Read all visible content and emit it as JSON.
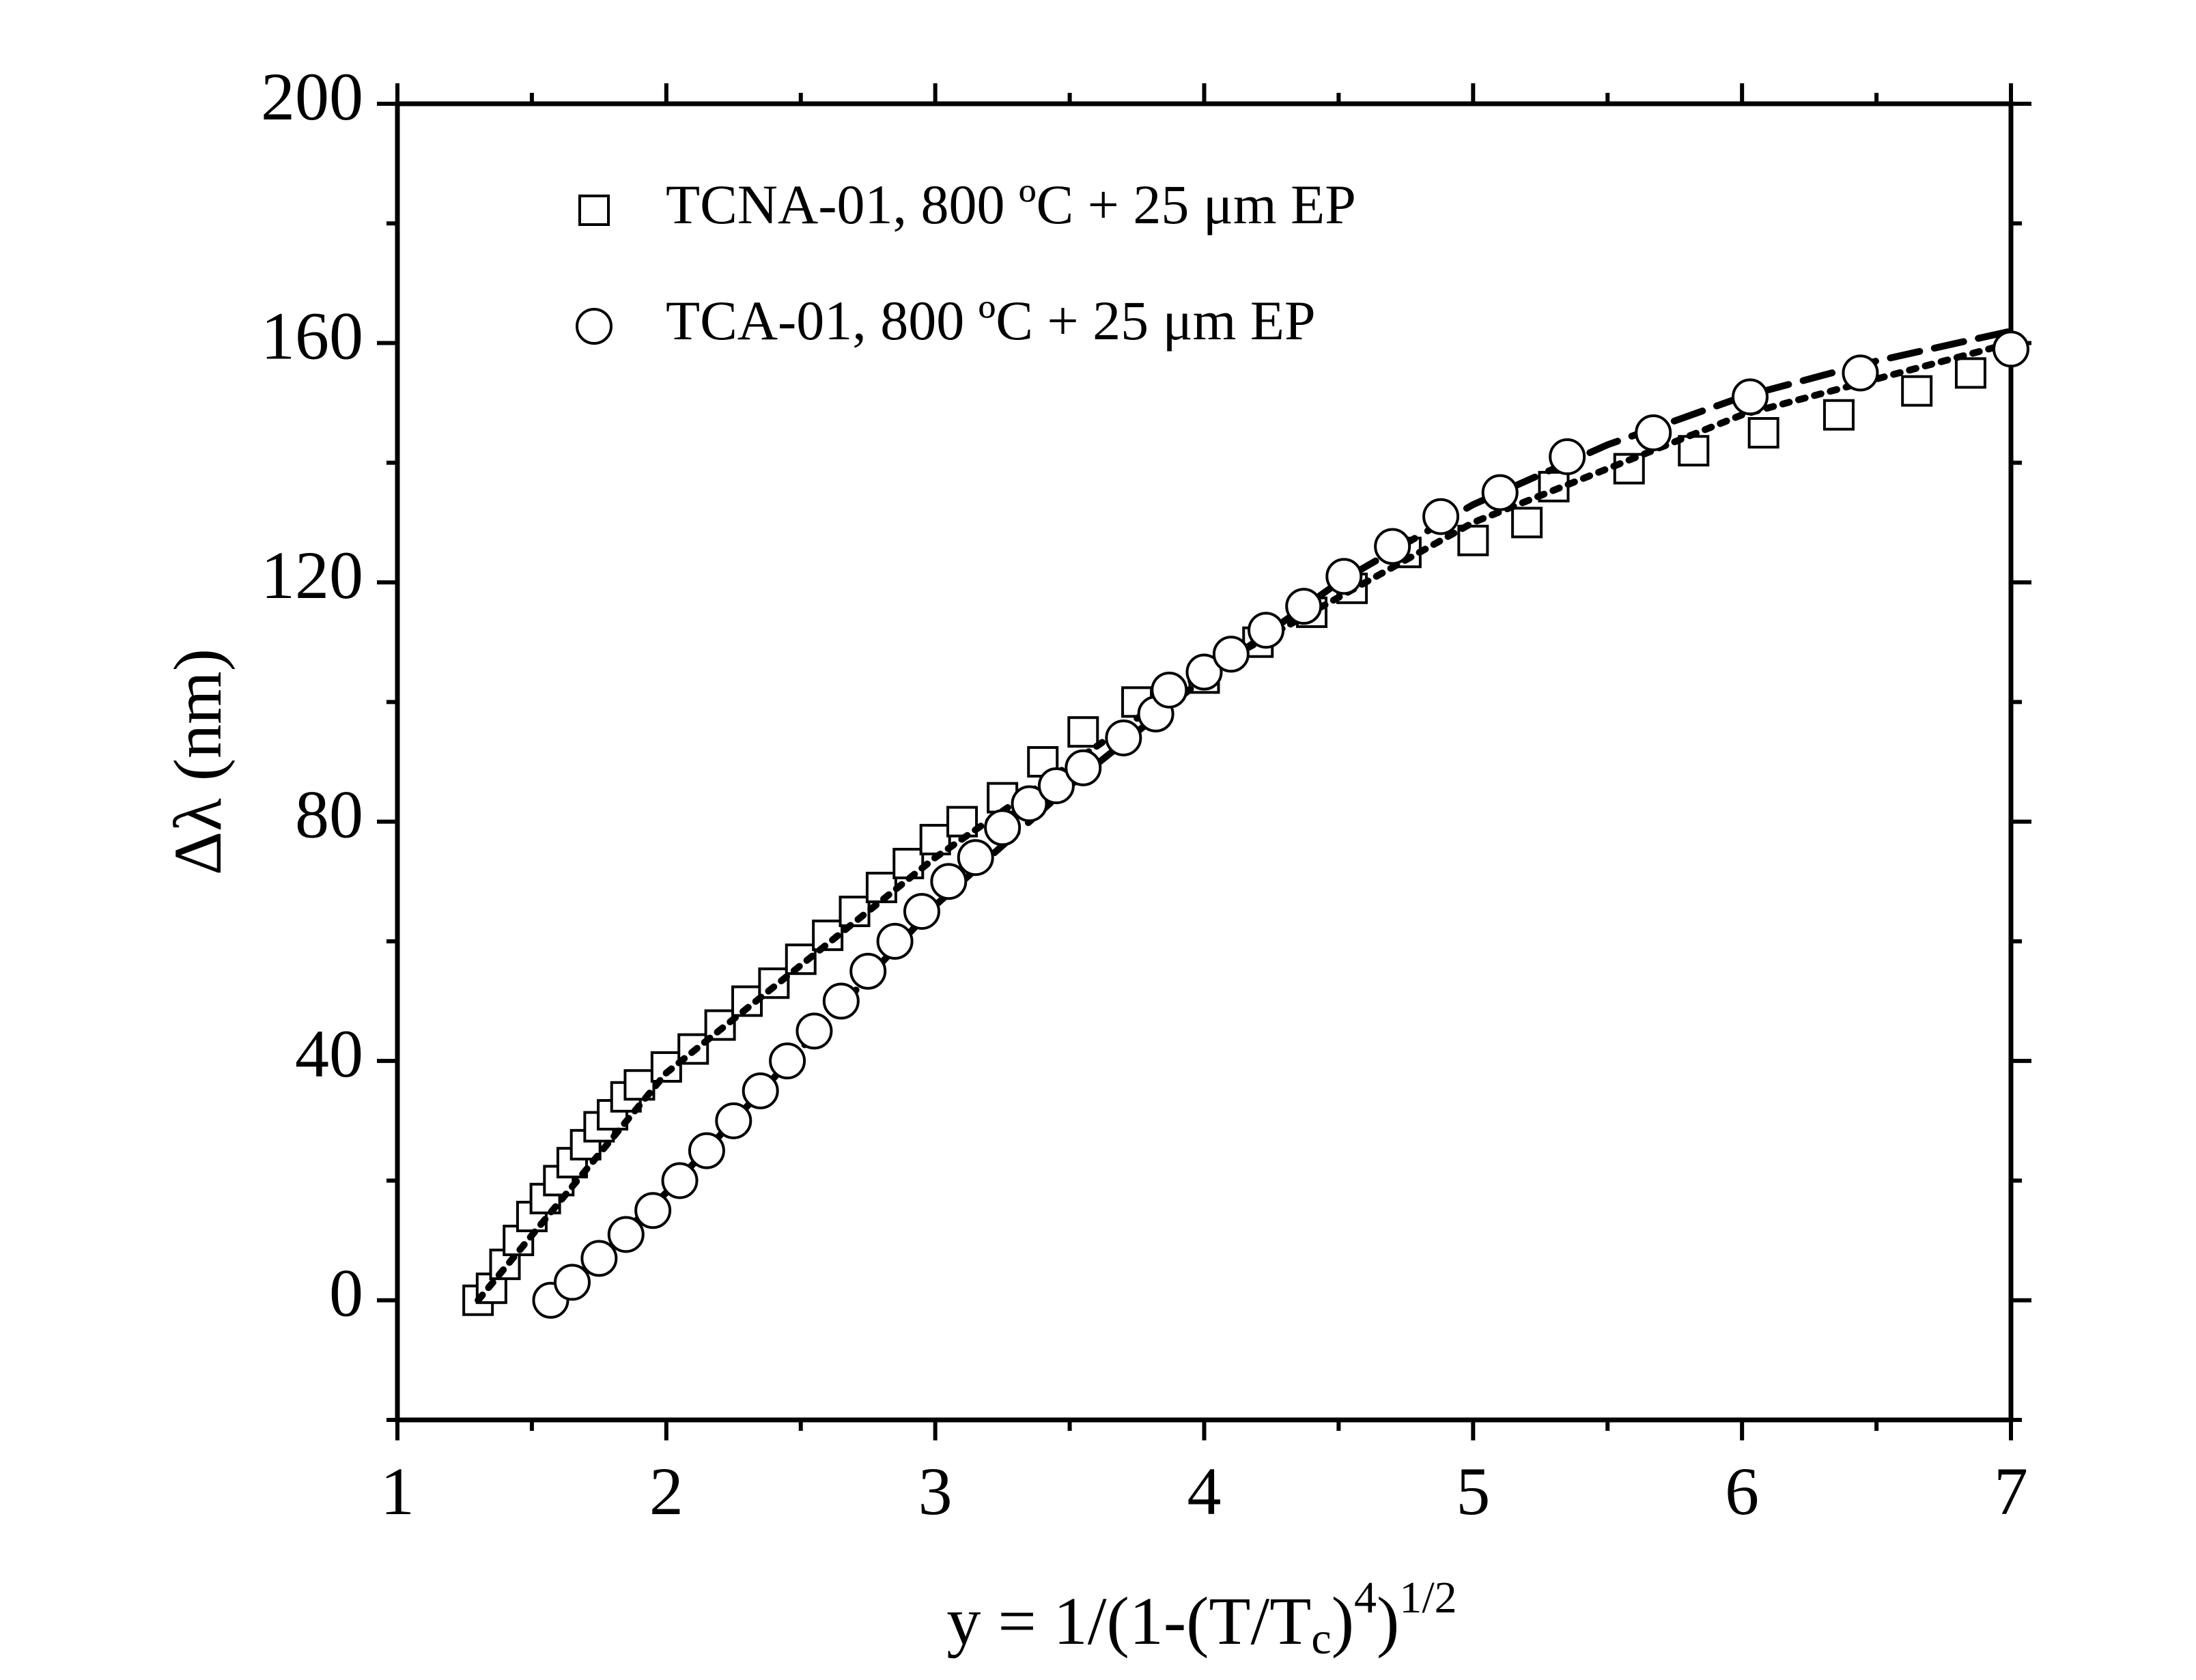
{
  "chart_data": {
    "type": "scatter",
    "y_label": "Δλ (nm)",
    "x_label": [
      "y = 1/(1-(T/T",
      "c",
      ")",
      "4",
      ")",
      "1/2"
    ],
    "xlim": [
      1,
      7
    ],
    "xticks": [
      1,
      2,
      3,
      4,
      5,
      6,
      7
    ],
    "xminorticks": [
      1.5,
      2.5,
      3.5,
      4.5,
      5.5,
      6.5
    ],
    "ylim": [
      -20,
      200
    ],
    "yticks": [
      0,
      40,
      80,
      120,
      160,
      200
    ],
    "yminorticks": [
      -20,
      20,
      60,
      100,
      140,
      180
    ],
    "legend": "upper left",
    "series": [
      {
        "name": "TCNA-01, 800 ºC + 25 μm EP",
        "marker": "square",
        "color": "#000000",
        "x": [
          1.3,
          1.35,
          1.4,
          1.45,
          1.5,
          1.55,
          1.6,
          1.65,
          1.7,
          1.75,
          1.8,
          1.85,
          1.9,
          2.0,
          2.1,
          2.2,
          2.3,
          2.4,
          2.5,
          2.6,
          2.7,
          2.8,
          2.9,
          3.0,
          3.1,
          3.25,
          3.4,
          3.55,
          3.75,
          4.0,
          4.2,
          4.4,
          4.55,
          4.75,
          5.0,
          5.2,
          5.3,
          5.58,
          5.82,
          6.08,
          6.36,
          6.65,
          6.85
        ],
        "values": [
          0,
          2,
          6,
          10,
          14,
          17,
          20,
          23,
          26,
          29,
          31,
          34,
          36,
          39,
          42,
          46,
          50,
          53,
          57,
          61,
          65,
          69,
          73,
          77,
          80,
          84,
          90,
          95,
          100,
          104,
          110,
          115,
          119,
          125,
          127,
          130,
          136,
          139,
          142,
          145,
          148,
          152,
          155
        ]
      },
      {
        "name": "TCA-01, 800 ºC + 25 μm EP",
        "marker": "circle",
        "color": "#000000",
        "x": [
          1.57,
          1.65,
          1.75,
          1.85,
          1.95,
          2.05,
          2.15,
          2.25,
          2.35,
          2.45,
          2.55,
          2.65,
          2.75,
          2.85,
          2.95,
          3.05,
          3.15,
          3.25,
          3.35,
          3.45,
          3.55,
          3.7,
          3.82,
          3.87,
          4.0,
          4.1,
          4.23,
          4.37,
          4.52,
          4.7,
          4.88,
          5.1,
          5.35,
          5.67,
          6.03,
          6.44,
          7.0
        ],
        "values": [
          0,
          3,
          7,
          11,
          15,
          20,
          25,
          30,
          35,
          40,
          45,
          50,
          55,
          60,
          65,
          70,
          74,
          79,
          83,
          86,
          89,
          94,
          98,
          102,
          105,
          108,
          112,
          116,
          121,
          126,
          131,
          135,
          141,
          145,
          151,
          155,
          159
        ]
      }
    ],
    "fits": [
      {
        "style": "dotted",
        "color": "#000000",
        "x": [
          1.3,
          2,
          3,
          4,
          5,
          6,
          7
        ],
        "values": [
          0,
          38,
          74,
          105,
          130,
          148,
          160
        ]
      },
      {
        "style": "dashed",
        "color": "#000000",
        "x": [
          1.57,
          2,
          2.5,
          3,
          3.5,
          4,
          4.5,
          5,
          5.5,
          6,
          6.5,
          7
        ],
        "values": [
          0,
          18,
          42,
          66,
          86,
          104,
          120,
          133,
          143,
          151,
          157,
          162
        ]
      }
    ]
  }
}
